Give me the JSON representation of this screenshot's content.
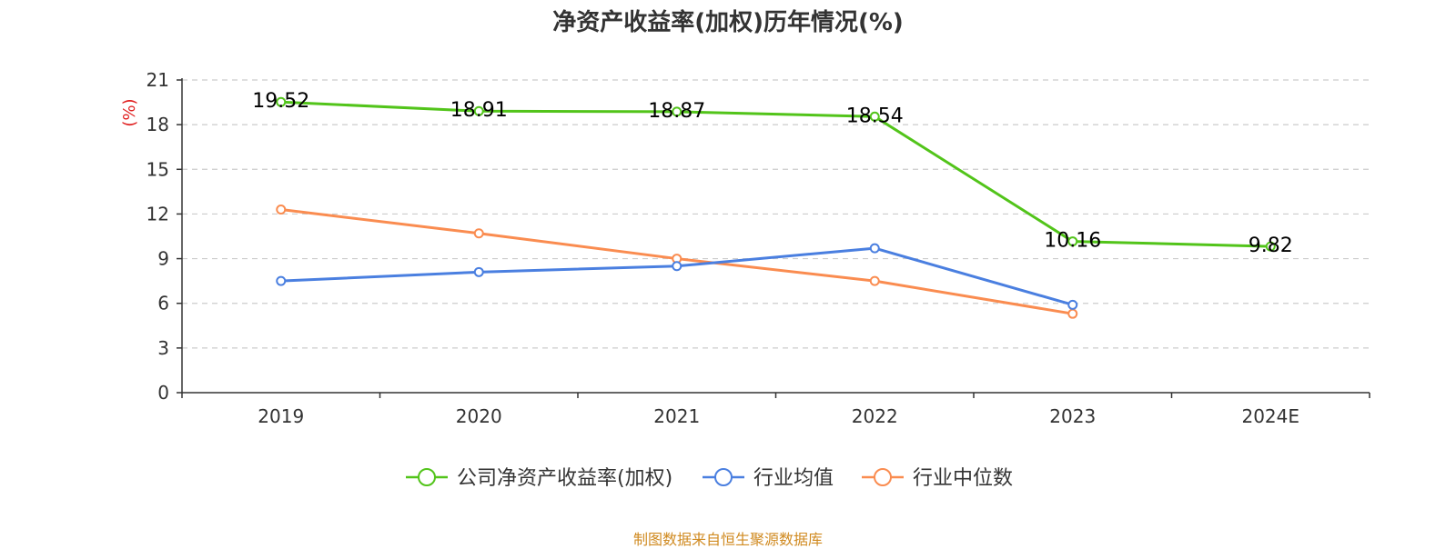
{
  "chart_data": {
    "type": "line",
    "title": "净资产收益率(加权)历年情况(%)",
    "ylabel": "(%)",
    "xlabel": "",
    "categories": [
      "2019",
      "2020",
      "2021",
      "2022",
      "2023",
      "2024E"
    ],
    "ylim": [
      0,
      21
    ],
    "yticks": [
      0,
      3,
      6,
      9,
      12,
      15,
      18,
      21
    ],
    "grid": true,
    "legend_position": "bottom",
    "series": [
      {
        "name": "公司净资产收益率(加权)",
        "color": "#52c41a",
        "values": [
          19.52,
          18.91,
          18.87,
          18.54,
          10.16,
          9.82
        ],
        "labels": [
          "19.52",
          "18.91",
          "18.87",
          "18.54",
          "10.16",
          "9.82"
        ]
      },
      {
        "name": "行业均值",
        "color": "#4a7fe0",
        "values": [
          7.5,
          8.1,
          8.5,
          9.7,
          5.9,
          null
        ]
      },
      {
        "name": "行业中位数",
        "color": "#fa8c50",
        "values": [
          12.3,
          10.7,
          9.0,
          7.5,
          5.3,
          null
        ]
      }
    ]
  },
  "source_note": "制图数据来自恒生聚源数据库",
  "colors": {
    "grid": "#cccccc",
    "axis": "#333333",
    "ylabel": "#e02020"
  }
}
